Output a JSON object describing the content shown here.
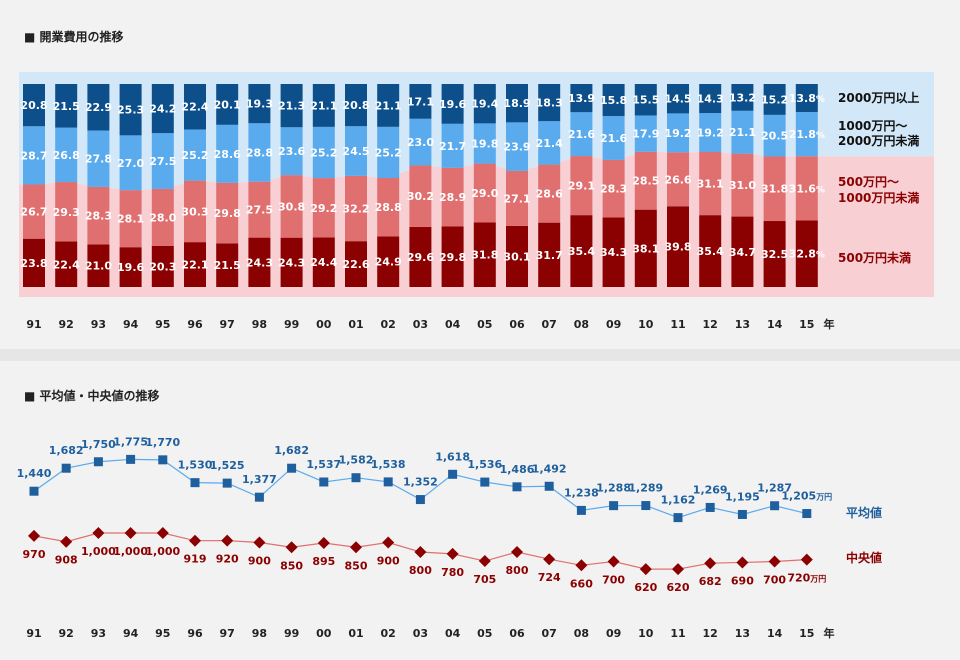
{
  "chart_data": [
    {
      "type": "bar",
      "title": "■ 開業費用の推移",
      "stacked": true,
      "percent": true,
      "categories": [
        "91",
        "92",
        "93",
        "94",
        "95",
        "96",
        "97",
        "98",
        "99",
        "00",
        "01",
        "02",
        "03",
        "04",
        "05",
        "06",
        "07",
        "08",
        "09",
        "10",
        "11",
        "12",
        "13",
        "14",
        "15"
      ],
      "x_unit": "年",
      "series": [
        {
          "name": "500万円未満",
          "color": "#8b0000",
          "values": [
            23.8,
            22.4,
            21.0,
            19.6,
            20.3,
            22.1,
            21.5,
            24.3,
            24.3,
            24.4,
            22.6,
            24.9,
            29.6,
            29.8,
            31.8,
            30.1,
            31.7,
            35.4,
            34.3,
            38.1,
            39.8,
            35.4,
            34.7,
            32.5,
            32.8
          ]
        },
        {
          "name": "500万円～\n1000万円未満",
          "color": "#e07070",
          "values": [
            26.7,
            29.3,
            28.3,
            28.1,
            28.0,
            30.3,
            29.8,
            27.5,
            30.8,
            29.2,
            32.2,
            28.8,
            30.2,
            28.9,
            29.0,
            27.1,
            28.6,
            29.1,
            28.3,
            28.5,
            26.6,
            31.1,
            31.0,
            31.8,
            31.6
          ]
        },
        {
          "name": "1000万円～\n2000万円未満",
          "color": "#5aaaee",
          "values": [
            28.7,
            26.8,
            27.8,
            27.0,
            27.5,
            25.2,
            28.6,
            28.8,
            23.6,
            25.2,
            24.5,
            25.2,
            23.0,
            21.7,
            19.8,
            23.9,
            21.4,
            21.6,
            21.6,
            17.9,
            19.2,
            19.2,
            21.1,
            20.5,
            21.8
          ]
        },
        {
          "name": "2000万円以上",
          "color": "#0d4f8b",
          "values": [
            20.8,
            21.5,
            22.9,
            25.3,
            24.2,
            22.4,
            20.1,
            19.3,
            21.3,
            21.1,
            20.8,
            21.1,
            17.1,
            19.6,
            19.4,
            18.9,
            18.3,
            13.9,
            15.8,
            15.5,
            14.5,
            14.3,
            13.2,
            15.2,
            13.8
          ]
        }
      ],
      "last_label_suffix": "%"
    },
    {
      "type": "line",
      "title": "■ 平均値・中央値の推移",
      "categories": [
        "91",
        "92",
        "93",
        "94",
        "95",
        "96",
        "97",
        "98",
        "99",
        "00",
        "01",
        "02",
        "03",
        "04",
        "05",
        "06",
        "07",
        "08",
        "09",
        "10",
        "11",
        "12",
        "13",
        "14",
        "15"
      ],
      "x_unit": "年",
      "unit_suffix": "万円",
      "series": [
        {
          "name": "平均値",
          "color": "#1f5f9e",
          "line_color": "#5aaaee",
          "marker": "square",
          "values": [
            1440,
            1682,
            1750,
            1775,
            1770,
            1530,
            1525,
            1377,
            1682,
            1537,
            1582,
            1538,
            1352,
            1618,
            1536,
            1486,
            1492,
            1238,
            1288,
            1289,
            1162,
            1269,
            1195,
            1287,
            1205
          ]
        },
        {
          "name": "中央値",
          "color": "#8b0000",
          "line_color": "#e07070",
          "marker": "diamond",
          "values": [
            970,
            908,
            1000,
            1000,
            1000,
            919,
            920,
            900,
            850,
            895,
            850,
            900,
            800,
            780,
            705,
            800,
            724,
            660,
            700,
            620,
            620,
            682,
            690,
            700,
            720
          ]
        }
      ]
    }
  ]
}
